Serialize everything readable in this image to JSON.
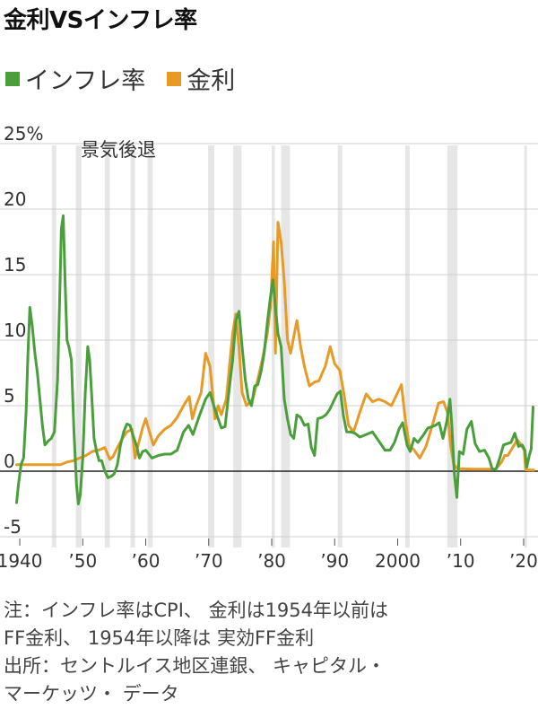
{
  "title": "金利VSインフレ率",
  "legend": {
    "inflation_label": "インフレ率",
    "rate_label": "金利"
  },
  "colors": {
    "inflation": "#4a9e3c",
    "rate": "#e79a26",
    "recession": "#e6e6e6",
    "grid": "#cfcfcf",
    "zero_line": "#222222"
  },
  "chart_data": {
    "type": "line",
    "ylim": [
      -5,
      25
    ],
    "xlim": [
      1938,
      2022
    ],
    "y_ticks": [
      {
        "value": 25,
        "label": "25%"
      },
      {
        "value": 20,
        "label": "20"
      },
      {
        "value": 15,
        "label": "15"
      },
      {
        "value": 10,
        "label": "10"
      },
      {
        "value": 5,
        "label": "5"
      },
      {
        "value": 0,
        "label": "0"
      },
      {
        "value": -5,
        "label": "-5"
      }
    ],
    "x_ticks": [
      {
        "value": 1940,
        "label": "1940"
      },
      {
        "value": 1950,
        "label": "’50"
      },
      {
        "value": 1960,
        "label": "’60"
      },
      {
        "value": 1970,
        "label": "’70"
      },
      {
        "value": 1980,
        "label": "’80"
      },
      {
        "value": 1990,
        "label": "’90"
      },
      {
        "value": 2000,
        "label": "2000"
      },
      {
        "value": 2010,
        "label": "’10"
      },
      {
        "value": 2020,
        "label": "’20"
      }
    ],
    "recession_label": "景気後退",
    "recessions": [
      [
        1945.1,
        1945.8
      ],
      [
        1948.9,
        1949.8
      ],
      [
        1953.5,
        1954.3
      ],
      [
        1957.6,
        1958.3
      ],
      [
        1960.3,
        1961.1
      ],
      [
        1969.9,
        1970.9
      ],
      [
        1973.9,
        1975.2
      ],
      [
        1980.0,
        1980.5
      ],
      [
        1981.5,
        1982.9
      ],
      [
        1990.5,
        1991.2
      ],
      [
        2001.2,
        2001.9
      ],
      [
        2007.9,
        2009.5
      ],
      [
        2020.1,
        2020.4
      ]
    ],
    "series": [
      {
        "name": "インフレ率",
        "color": "#4a9e3c",
        "x": [
          1939.5,
          1939.8,
          1940.2,
          1940.6,
          1941.0,
          1941.3,
          1941.6,
          1942.0,
          1942.4,
          1942.8,
          1943.2,
          1943.6,
          1944.0,
          1944.5,
          1945.0,
          1945.5,
          1946.0,
          1946.3,
          1946.6,
          1946.9,
          1947.2,
          1947.5,
          1947.8,
          1948.2,
          1948.6,
          1949.0,
          1949.3,
          1949.6,
          1950.0,
          1950.4,
          1950.8,
          1951.1,
          1951.4,
          1951.8,
          1952.2,
          1952.6,
          1953.0,
          1953.5,
          1954.0,
          1954.5,
          1955.0,
          1955.5,
          1956.0,
          1956.5,
          1957.0,
          1957.5,
          1958.0,
          1958.5,
          1959.0,
          1959.5,
          1960.0,
          1961.0,
          1962.0,
          1963.0,
          1964.0,
          1965.0,
          1966.0,
          1966.8,
          1967.5,
          1968.5,
          1969.5,
          1970.2,
          1970.8,
          1971.5,
          1972.0,
          1972.6,
          1973.2,
          1973.8,
          1974.3,
          1974.8,
          1975.3,
          1975.8,
          1976.3,
          1976.8,
          1977.3,
          1977.8,
          1978.3,
          1978.8,
          1979.3,
          1979.8,
          1980.2,
          1980.6,
          1981.0,
          1981.5,
          1982.0,
          1982.5,
          1983.0,
          1983.5,
          1984.0,
          1984.6,
          1985.2,
          1985.8,
          1986.3,
          1986.8,
          1987.3,
          1988.0,
          1988.6,
          1989.2,
          1989.8,
          1990.4,
          1990.9,
          1991.4,
          1991.9,
          1992.5,
          1993.2,
          1994.0,
          1995.0,
          1996.0,
          1997.0,
          1998.0,
          1998.8,
          1999.5,
          2000.2,
          2000.8,
          2001.5,
          2002.0,
          2002.6,
          2003.2,
          2004.0,
          2004.8,
          2005.5,
          2006.0,
          2006.6,
          2007.2,
          2007.8,
          2008.3,
          2008.6,
          2009.0,
          2009.4,
          2009.8,
          2010.4,
          2011.0,
          2011.7,
          2012.3,
          2013.0,
          2013.8,
          2014.5,
          2015.0,
          2015.6,
          2016.2,
          2016.8,
          2017.4,
          2018.0,
          2018.6,
          2019.2,
          2019.8,
          2020.2,
          2020.5,
          2020.9,
          2021.2,
          2021.5
        ],
        "values": [
          -2.4,
          -1.0,
          0.5,
          1.0,
          4.5,
          9.0,
          12.5,
          11.0,
          9.0,
          7.5,
          5.5,
          3.5,
          2.0,
          2.3,
          2.5,
          3.0,
          7.0,
          12.5,
          18.5,
          19.5,
          14.5,
          10.0,
          9.5,
          8.5,
          3.0,
          -1.0,
          -2.5,
          -1.8,
          1.0,
          6.0,
          9.5,
          8.5,
          6.0,
          2.5,
          1.5,
          0.8,
          0.8,
          0.0,
          -0.5,
          -0.4,
          -0.2,
          0.5,
          2.0,
          3.0,
          3.6,
          3.5,
          2.7,
          2.0,
          1.0,
          1.5,
          1.6,
          1.0,
          1.2,
          1.3,
          1.3,
          1.6,
          3.0,
          3.5,
          2.8,
          4.2,
          5.5,
          6.0,
          5.0,
          4.0,
          3.3,
          3.4,
          6.0,
          8.5,
          11.5,
          12.2,
          9.5,
          7.0,
          5.5,
          5.0,
          6.5,
          6.6,
          7.6,
          9.0,
          11.3,
          13.3,
          14.6,
          12.5,
          10.5,
          9.5,
          5.5,
          4.0,
          2.8,
          2.5,
          4.3,
          4.1,
          3.5,
          3.6,
          1.8,
          1.2,
          4.0,
          4.1,
          4.3,
          4.7,
          5.3,
          5.9,
          6.1,
          4.2,
          3.0,
          3.0,
          2.9,
          2.6,
          2.8,
          3.0,
          2.3,
          1.6,
          1.6,
          2.2,
          3.2,
          3.7,
          2.0,
          1.5,
          2.5,
          2.2,
          2.7,
          3.3,
          3.4,
          3.5,
          3.7,
          2.5,
          3.8,
          5.5,
          3.5,
          -0.2,
          -2.0,
          1.5,
          1.3,
          3.2,
          3.8,
          2.1,
          1.5,
          1.6,
          1.0,
          0.2,
          0.1,
          1.0,
          2.0,
          2.1,
          2.2,
          2.9,
          1.9,
          2.0,
          1.6,
          0.3,
          1.2,
          1.7,
          4.9
        ]
      },
      {
        "name": "金利",
        "color": "#e79a26",
        "x": [
          1939.5,
          1944.0,
          1945.5,
          1946.5,
          1947.5,
          1948.5,
          1949.5,
          1950.5,
          1951.5,
          1952.5,
          1953.5,
          1954.3,
          1954.8,
          1955.5,
          1956.3,
          1957.0,
          1957.8,
          1958.3,
          1958.8,
          1959.5,
          1960.0,
          1960.6,
          1961.2,
          1962.0,
          1963.0,
          1964.0,
          1965.0,
          1966.0,
          1966.9,
          1967.4,
          1968.0,
          1968.8,
          1969.5,
          1970.2,
          1971.0,
          1971.5,
          1972.0,
          1972.8,
          1973.4,
          1973.8,
          1974.3,
          1974.8,
          1975.3,
          1976.0,
          1977.0,
          1977.8,
          1978.5,
          1979.3,
          1979.8,
          1980.3,
          1980.6,
          1981.0,
          1981.5,
          1982.0,
          1982.5,
          1983.0,
          1984.0,
          1984.6,
          1985.2,
          1986.0,
          1986.8,
          1987.5,
          1988.5,
          1989.3,
          1990.0,
          1990.8,
          1991.5,
          1992.2,
          1993.0,
          1994.0,
          1995.0,
          1996.0,
          1997.0,
          1998.0,
          1999.0,
          2000.0,
          2000.6,
          2001.2,
          2001.9,
          2002.5,
          2003.5,
          2004.5,
          2005.5,
          2006.5,
          2007.3,
          2007.9,
          2008.4,
          2008.9,
          2009.5,
          2012.0,
          2015.5,
          2016.0,
          2016.5,
          2017.0,
          2017.5,
          2018.0,
          2018.5,
          2019.0,
          2019.6,
          2020.1,
          2020.3,
          2021.6
        ],
        "values": [
          0.5,
          0.5,
          0.5,
          0.5,
          0.7,
          0.8,
          1.0,
          1.2,
          1.5,
          1.6,
          1.8,
          0.9,
          1.1,
          1.8,
          2.5,
          3.0,
          3.2,
          1.0,
          2.0,
          3.3,
          4.0,
          3.0,
          2.0,
          2.7,
          3.2,
          3.5,
          4.1,
          5.0,
          5.7,
          4.0,
          5.0,
          6.0,
          9.0,
          8.0,
          4.0,
          5.0,
          4.3,
          5.5,
          8.5,
          10.5,
          12.0,
          9.5,
          6.0,
          5.0,
          5.5,
          7.0,
          8.5,
          10.5,
          12.5,
          17.5,
          9.0,
          19.0,
          17.5,
          14.5,
          10.0,
          9.0,
          11.5,
          9.5,
          8.0,
          6.5,
          6.8,
          6.9,
          8.0,
          9.5,
          8.2,
          7.7,
          5.8,
          3.5,
          3.0,
          4.5,
          5.9,
          5.3,
          5.5,
          5.3,
          5.0,
          6.0,
          6.6,
          4.0,
          1.8,
          1.7,
          1.0,
          1.9,
          3.5,
          5.2,
          5.3,
          4.5,
          2.0,
          0.5,
          0.2,
          0.15,
          0.15,
          0.4,
          0.7,
          1.2,
          1.2,
          1.6,
          2.0,
          2.4,
          2.0,
          1.6,
          0.1,
          0.08
        ]
      }
    ]
  },
  "note_lines": [
    "注：インフレ率はCPI、 金利は1954年以前は",
    "FF金利、 1954年以降は 実効FF金利",
    "出所：セントルイス地区連銀、 キャピタル・",
    "マーケッツ・ データ"
  ]
}
